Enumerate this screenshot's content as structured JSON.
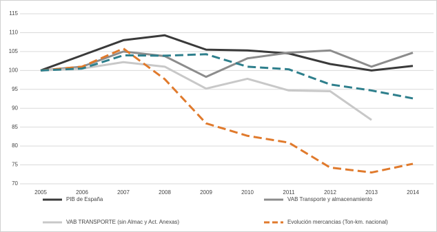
{
  "chart_data": {
    "type": "line",
    "categories": [
      "2005",
      "2006",
      "2007",
      "2008",
      "2009",
      "2010",
      "2011",
      "2012",
      "2013",
      "2014"
    ],
    "ylim": [
      70,
      115
    ],
    "yticks": [
      70,
      75,
      80,
      85,
      90,
      95,
      100,
      105,
      110,
      115
    ],
    "grid": true,
    "series": [
      {
        "name": "PIB de España",
        "color": "#3a3a3a",
        "dashed": false,
        "values": [
          100,
          104,
          108,
          109.3,
          105.5,
          105.3,
          104.5,
          101.7,
          100,
          101.2
        ]
      },
      {
        "name": "VAB Transporte y almacenamiento",
        "color": "#8c8c8c",
        "dashed": false,
        "values": [
          100,
          101,
          105,
          103.8,
          98.3,
          103.2,
          104.7,
          105.3,
          101,
          104.7
        ]
      },
      {
        "name": "VAB TRANSPORTE (sin Almac y Act. Anexas)",
        "color": "#c8c8c8",
        "dashed": false,
        "values": [
          100,
          100.5,
          102.2,
          101,
          95.2,
          97.8,
          94.7,
          94.5,
          86.9,
          null
        ]
      },
      {
        "name": "Evolución mercancias (Ton-km. nacional)",
        "color": "#e07a2c",
        "dashed": true,
        "values": [
          100,
          101,
          105.8,
          97.7,
          86,
          82.7,
          80.9,
          74.3,
          73,
          75.3
        ]
      },
      {
        "color": "#2e7f8c",
        "dashed": true,
        "values": [
          100,
          100.5,
          104,
          103.9,
          104.3,
          101,
          100.3,
          96.3,
          94.7,
          92.6
        ]
      }
    ]
  }
}
